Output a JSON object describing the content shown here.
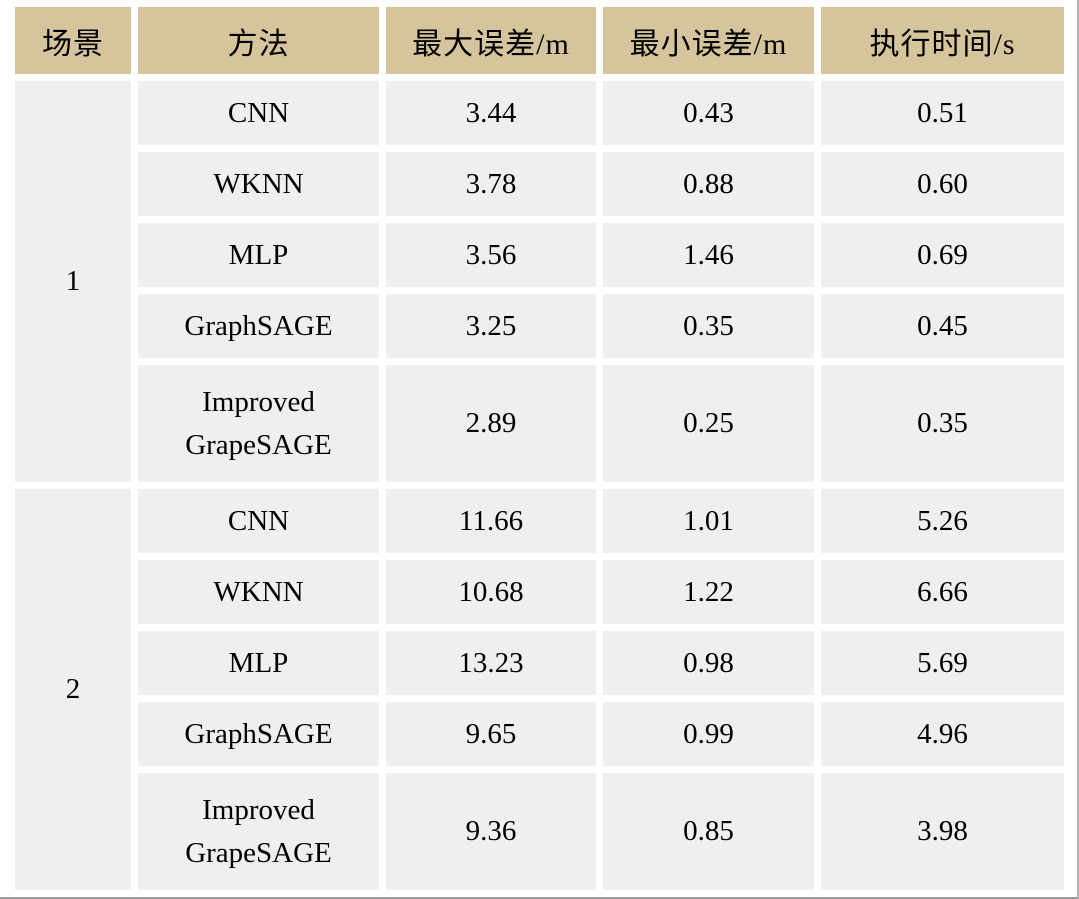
{
  "table": {
    "columns": [
      {
        "label": "场景"
      },
      {
        "label": "方法"
      },
      {
        "label": "最大误差/m"
      },
      {
        "label": "最小误差/m"
      },
      {
        "label": "执行时间/s"
      }
    ],
    "groups": [
      {
        "scene": "1",
        "rows": [
          {
            "method": "CNN",
            "max_error": "3.44",
            "min_error": "0.43",
            "exec_time": "0.51"
          },
          {
            "method": "WKNN",
            "max_error": "3.78",
            "min_error": "0.88",
            "exec_time": "0.60"
          },
          {
            "method": "MLP",
            "max_error": "3.56",
            "min_error": "1.46",
            "exec_time": "0.69"
          },
          {
            "method": "GraphSAGE",
            "max_error": "3.25",
            "min_error": "0.35",
            "exec_time": "0.45"
          },
          {
            "method": "Improved\nGrapeSAGE",
            "max_error": "2.89",
            "min_error": "0.25",
            "exec_time": "0.35"
          }
        ]
      },
      {
        "scene": "2",
        "rows": [
          {
            "method": "CNN",
            "max_error": "11.66",
            "min_error": "1.01",
            "exec_time": "5.26"
          },
          {
            "method": "WKNN",
            "max_error": "10.68",
            "min_error": "1.22",
            "exec_time": "6.66"
          },
          {
            "method": "MLP",
            "max_error": "13.23",
            "min_error": "0.98",
            "exec_time": "5.69"
          },
          {
            "method": "GraphSAGE",
            "max_error": "9.65",
            "min_error": "0.99",
            "exec_time": "4.96"
          },
          {
            "method": "Improved\nGrapeSAGE",
            "max_error": "9.36",
            "min_error": "0.85",
            "exec_time": "3.98"
          }
        ]
      }
    ]
  },
  "colors": {
    "header_bg": "#d6c49c",
    "cell_bg": "#efefef",
    "gap": "#ffffff",
    "text": "#000000"
  }
}
